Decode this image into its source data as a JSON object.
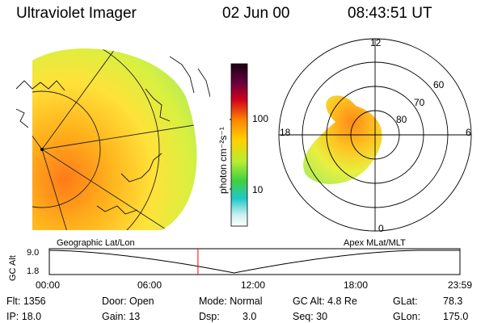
{
  "header": {
    "instrument": "Ultraviolet Imager",
    "date": "02 Jun 00",
    "time": "08:43:51 UT"
  },
  "colorbar": {
    "unit_label": "photon cm⁻²s⁻¹",
    "ticks": [
      "100",
      "10"
    ]
  },
  "polar_plot": {
    "mlt_labels": {
      "top": "12",
      "left": "18",
      "right": "6",
      "bottom": "0"
    },
    "lat_labels": [
      "60",
      "70",
      "80"
    ]
  },
  "orbit_panel": {
    "left_title": "Geographic Lat/Lon",
    "right_title": "Apex MLat/MLT",
    "ylabel": "GC Alt",
    "y_ticks": [
      "9.0",
      "1.8"
    ],
    "x_ticks": [
      "00:00",
      "06:00",
      "12:00",
      "18:00",
      "23:59"
    ],
    "current_time_fraction": 0.362,
    "colors": {
      "marker": "#ff0000",
      "curve": "#000000"
    }
  },
  "info": {
    "flt": "Flt:  1356",
    "ip": "IP:  18.0",
    "door": "Door:  Open",
    "gain": "Gain:  13",
    "mode": "Mode:  Normal",
    "dsp_label": "Dsp:",
    "dsp_value": "3.0",
    "gc_alt": "GC Alt:  4.8 Re",
    "seq": "Seq:  30",
    "glat_label": "GLat:",
    "glat_value": "78.3",
    "glon_label": "GLon:",
    "glon_value": "175.0"
  }
}
